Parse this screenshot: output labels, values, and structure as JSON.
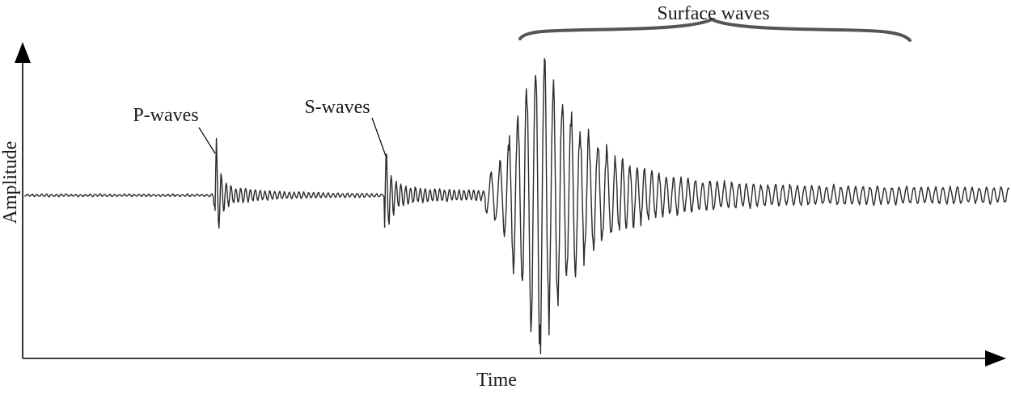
{
  "labels": {
    "y_axis": "Amplitude",
    "x_axis": "Time",
    "p_waves": "P-waves",
    "s_waves": "S-waves",
    "surface_waves": "Surface waves"
  },
  "colors": {
    "trace": "#2b2b2b",
    "axis": "#000000",
    "brace": "#555555"
  }
}
